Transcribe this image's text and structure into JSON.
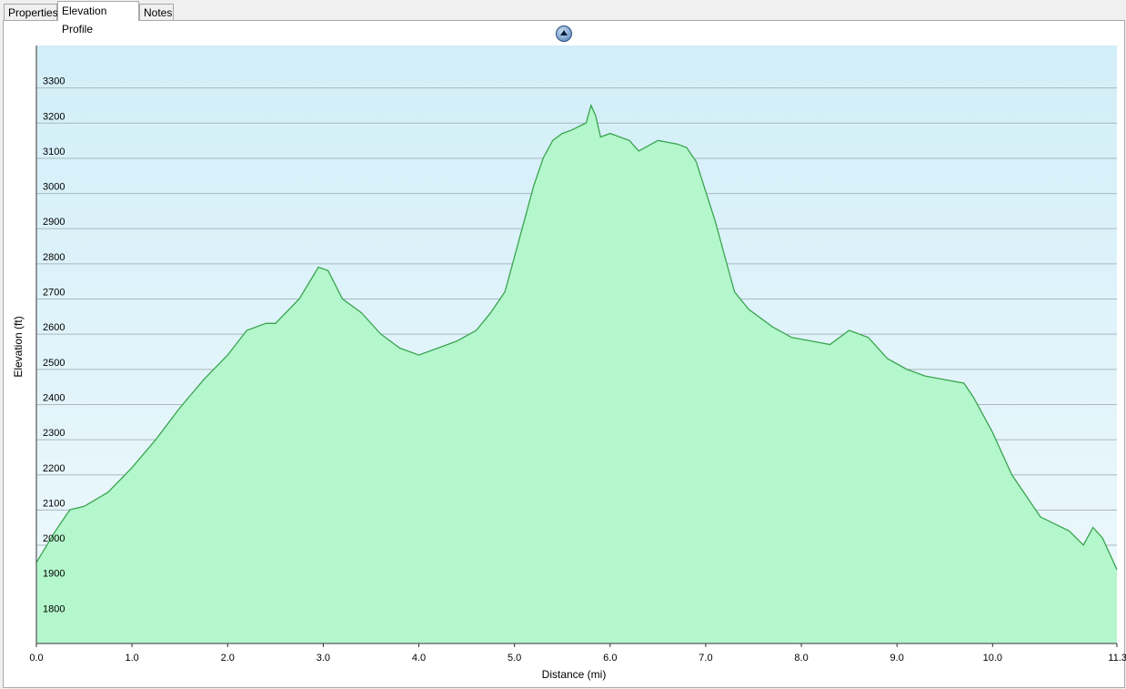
{
  "tabs": [
    {
      "label": "Properties"
    },
    {
      "label": "Elevation Profile"
    },
    {
      "label": "Notes"
    }
  ],
  "active_tab": "Elevation Profile",
  "collapse_icon": "collapse-up-icon",
  "colors": {
    "area_fill": "#b4f7cc",
    "line": "#3aa44f",
    "sky_top": "#d2eef8",
    "sky_bottom": "#eef9fc",
    "gridline": "#a9b9be"
  },
  "chart_data": {
    "type": "area",
    "title": "",
    "xlabel": "Distance  (mi)",
    "ylabel": "Elevation (ft)",
    "xlim": [
      0,
      11.3
    ],
    "ylim": [
      1700,
      3400
    ],
    "x_ticks": [
      "0.0",
      "1.0",
      "2.0",
      "3.0",
      "4.0",
      "5.0",
      "6.0",
      "7.0",
      "8.0",
      "9.0",
      "10.0",
      "11.3"
    ],
    "y_ticks": [
      "1800",
      "1900",
      "2000",
      "2100",
      "2200",
      "2300",
      "2400",
      "2500",
      "2600",
      "2700",
      "2800",
      "2900",
      "3000",
      "3100",
      "3200",
      "3300"
    ],
    "grid": true,
    "series": [
      {
        "x": [
          0.0,
          0.2,
          0.35,
          0.5,
          0.75,
          1.0,
          1.25,
          1.5,
          1.75,
          2.0,
          2.2,
          2.4,
          2.5,
          2.75,
          2.95,
          3.05,
          3.2,
          3.4,
          3.6,
          3.8,
          4.0,
          4.2,
          4.4,
          4.6,
          4.75,
          4.9,
          5.0,
          5.1,
          5.2,
          5.3,
          5.4,
          5.5,
          5.6,
          5.75,
          5.8,
          5.85,
          5.9,
          6.0,
          6.2,
          6.3,
          6.5,
          6.7,
          6.8,
          6.9,
          7.1,
          7.3,
          7.45,
          7.7,
          7.9,
          8.1,
          8.3,
          8.5,
          8.7,
          8.9,
          9.1,
          9.3,
          9.5,
          9.7,
          9.8,
          10.0,
          10.2,
          10.5,
          10.8,
          10.95,
          11.05,
          11.15,
          11.3
        ],
        "y": [
          1930,
          2020,
          2080,
          2090,
          2130,
          2200,
          2280,
          2370,
          2450,
          2520,
          2590,
          2610,
          2610,
          2680,
          2770,
          2760,
          2680,
          2640,
          2580,
          2540,
          2520,
          2540,
          2560,
          2590,
          2640,
          2700,
          2800,
          2900,
          3000,
          3080,
          3130,
          3150,
          3160,
          3180,
          3230,
          3200,
          3140,
          3150,
          3130,
          3100,
          3130,
          3120,
          3110,
          3070,
          2900,
          2700,
          2650,
          2600,
          2570,
          2560,
          2550,
          2590,
          2570,
          2510,
          2480,
          2460,
          2450,
          2440,
          2400,
          2300,
          2180,
          2060,
          2020,
          1980,
          2030,
          2000,
          1910
        ]
      }
    ]
  }
}
